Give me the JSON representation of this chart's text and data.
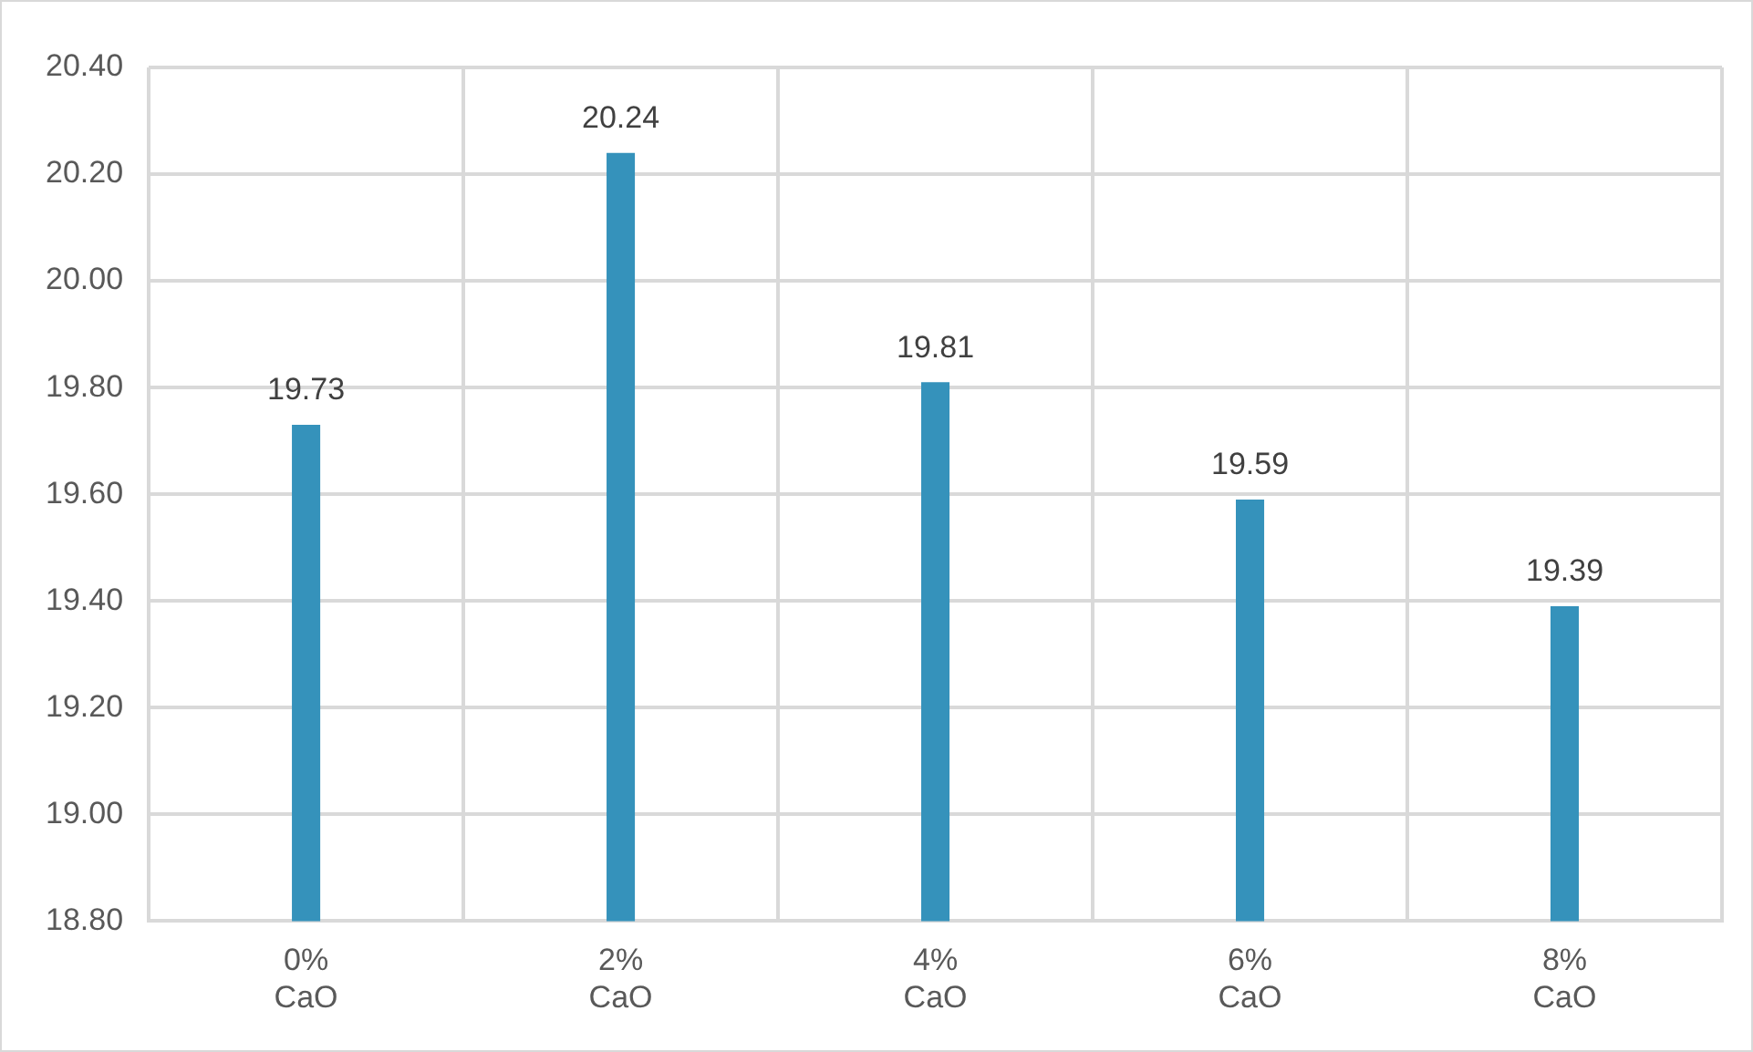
{
  "chart_data": {
    "type": "bar",
    "categories": [
      "0% CaO",
      "2% CaO",
      "4% CaO",
      "6% CaO",
      "8% CaO"
    ],
    "values": [
      19.73,
      20.24,
      19.81,
      19.59,
      19.39
    ],
    "color": "#3592bb",
    "ylim": [
      18.8,
      20.4
    ],
    "yticks": [
      {
        "value": 18.8,
        "label": "18.80"
      },
      {
        "value": 19.0,
        "label": "19.00"
      },
      {
        "value": 19.2,
        "label": "19.20"
      },
      {
        "value": 19.4,
        "label": "19.40"
      },
      {
        "value": 19.6,
        "label": "19.60"
      },
      {
        "value": 19.8,
        "label": "19.80"
      },
      {
        "value": 20.0,
        "label": "20.00"
      },
      {
        "value": 20.2,
        "label": "20.20"
      },
      {
        "value": 20.4,
        "label": "20.40"
      }
    ],
    "grid": true,
    "data_labels": true,
    "legend": false
  }
}
